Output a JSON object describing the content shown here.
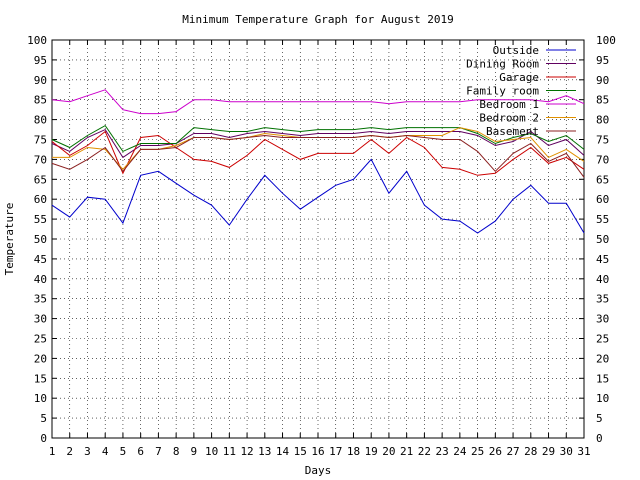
{
  "chart_data": {
    "type": "line",
    "title": "Minimum Temperature Graph for August 2019",
    "xlabel": "Days",
    "ylabel": "Temperature",
    "xlim": [
      1,
      31
    ],
    "ylim": [
      0,
      100
    ],
    "x_ticks": [
      1,
      2,
      3,
      4,
      5,
      6,
      7,
      8,
      9,
      10,
      11,
      12,
      13,
      14,
      15,
      16,
      17,
      18,
      19,
      20,
      21,
      22,
      23,
      24,
      25,
      26,
      27,
      28,
      29,
      30,
      31
    ],
    "y_ticks": [
      0,
      5,
      10,
      15,
      20,
      25,
      30,
      35,
      40,
      45,
      50,
      55,
      60,
      65,
      70,
      75,
      80,
      85,
      90,
      95,
      100
    ],
    "y_ticks_right": true,
    "grid": true,
    "legend_position": "top-right",
    "x": [
      1,
      2,
      3,
      4,
      5,
      6,
      7,
      8,
      9,
      10,
      11,
      12,
      13,
      14,
      15,
      16,
      17,
      18,
      19,
      20,
      21,
      22,
      23,
      24,
      25,
      26,
      27,
      28,
      29,
      30,
      31
    ],
    "series": [
      {
        "name": "Outside",
        "color": "#0000cc",
        "values": [
          58.5,
          55.5,
          60.5,
          60,
          54,
          66,
          67,
          64,
          61,
          58.5,
          53.5,
          60,
          66,
          61.5,
          57.5,
          60.5,
          63.5,
          65,
          70,
          61.5,
          67,
          58.5,
          55,
          54.5,
          51.5,
          54.5,
          60,
          63.5,
          59,
          59,
          51.5
        ]
      },
      {
        "name": "Dining Room",
        "color": "#600060",
        "values": [
          74,
          72,
          75.5,
          77.5,
          70.5,
          73.5,
          73.5,
          74,
          76.5,
          76.5,
          75.5,
          76.5,
          77,
          76.5,
          76,
          76.5,
          76.5,
          76.5,
          77,
          76.5,
          77,
          77,
          77,
          77,
          76,
          73.5,
          74.5,
          77,
          73.5,
          75,
          71
        ]
      },
      {
        "name": "Garage",
        "color": "#cc0000",
        "values": [
          74.5,
          71,
          73.5,
          77,
          66.5,
          75.5,
          76,
          73,
          70,
          69.5,
          68,
          71,
          75,
          72.5,
          70,
          71.5,
          71.5,
          71.5,
          75,
          71.5,
          75.5,
          73,
          68,
          67.5,
          66,
          66.5,
          70,
          73,
          69,
          70.5,
          67.5
        ]
      },
      {
        "name": "Family room",
        "color": "#007000",
        "values": [
          75,
          73,
          76,
          78.5,
          72,
          74,
          74,
          74,
          78,
          77.5,
          77,
          77,
          78,
          77.5,
          77,
          77.5,
          77.5,
          77.5,
          78,
          77.5,
          78,
          78,
          78,
          78,
          76.5,
          74,
          75.5,
          76.5,
          74.5,
          76,
          72.5
        ]
      },
      {
        "name": "Bedroom 1",
        "color": "#cc00cc",
        "values": [
          85,
          84.5,
          86,
          87.5,
          82.5,
          81.5,
          81.5,
          82,
          85,
          85,
          84.5,
          84.5,
          84.5,
          84.5,
          84.5,
          84.5,
          84.5,
          84.5,
          84.5,
          84,
          84.5,
          84.5,
          84.5,
          84.5,
          85,
          85,
          85,
          85,
          84.5,
          86,
          84
        ]
      },
      {
        "name": "Bedroom 2",
        "color": "#e09000",
        "values": [
          70.5,
          70.5,
          73,
          72.5,
          67.5,
          72.5,
          72.5,
          73.5,
          75.5,
          75.5,
          75,
          75.5,
          76.5,
          76,
          75.5,
          75.5,
          75.5,
          75.5,
          76,
          75.5,
          76,
          76,
          76,
          78,
          77,
          74.5,
          75,
          75.5,
          70.5,
          72.5,
          69.5
        ]
      },
      {
        "name": "Basement",
        "color": "#8b2020",
        "values": [
          69,
          67.5,
          70,
          73,
          67,
          72.5,
          72.5,
          73,
          75.5,
          75.5,
          75,
          75.5,
          76,
          75.5,
          75.5,
          75.5,
          75.5,
          75.5,
          76,
          75.5,
          76,
          75.5,
          75,
          75,
          72,
          67,
          71.5,
          74,
          69.5,
          71.5,
          65.5
        ]
      }
    ]
  }
}
